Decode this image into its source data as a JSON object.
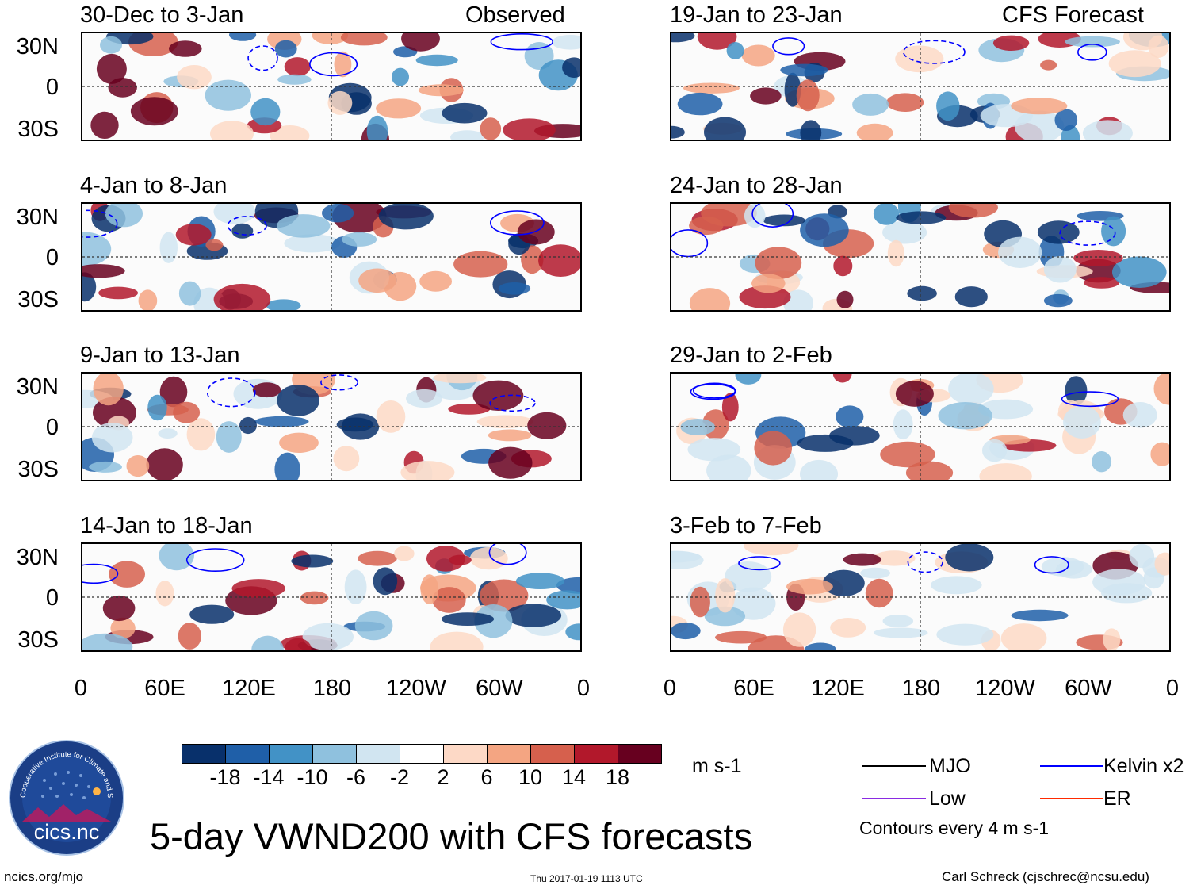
{
  "chart_data": {
    "type": "heatmap",
    "title": "5-day VWND200 with CFS forecasts",
    "variable": "VWND200",
    "units": "m s-1",
    "lat_labels": [
      "30N",
      "0",
      "30S"
    ],
    "lon_labels": [
      "0",
      "60E",
      "120E",
      "180",
      "120W",
      "60W",
      "0"
    ],
    "column_labels": {
      "observed": "Observed",
      "forecast": "CFS Forecast"
    },
    "panels": [
      {
        "period": "30-Dec to 3-Jan",
        "source": "Observed"
      },
      {
        "period": "4-Jan to 8-Jan",
        "source": "Observed"
      },
      {
        "period": "9-Jan to 13-Jan",
        "source": "Observed"
      },
      {
        "period": "14-Jan to 18-Jan",
        "source": "Observed"
      },
      {
        "period": "19-Jan to 23-Jan",
        "source": "CFS Forecast"
      },
      {
        "period": "24-Jan to 28-Jan",
        "source": "CFS Forecast"
      },
      {
        "period": "29-Jan to 2-Feb",
        "source": "CFS Forecast"
      },
      {
        "period": "3-Feb to 7-Feb",
        "source": "CFS Forecast"
      }
    ],
    "colorbar": {
      "ticks": [
        "-18",
        "-14",
        "-10",
        "-6",
        "-2",
        "2",
        "6",
        "10",
        "14",
        "18"
      ],
      "colors": [
        "#08306b",
        "#1f5fa8",
        "#4292c6",
        "#8fc1de",
        "#d1e5f1",
        "#ffffff",
        "#fdd9c6",
        "#f4a582",
        "#d6604d",
        "#b2182b",
        "#67001f"
      ]
    },
    "legend": [
      {
        "label": "MJO",
        "color": "#000000"
      },
      {
        "label": "Kelvin x2",
        "color": "#0000ff"
      },
      {
        "label": "Low",
        "color": "#8a2be2"
      },
      {
        "label": "ER",
        "color": "#ff2a00"
      }
    ],
    "contour_note": "Contours every 4 m s-1"
  },
  "logo": {
    "name": "cics.nc",
    "ring_text": "Cooperative Institute for Climate and Satellites"
  },
  "footer": {
    "url": "ncics.org/mjo",
    "timestamp": "Thu 2017-01-19 1113 UTC",
    "author": "Carl Schreck (cjschrec@ncsu.edu)"
  }
}
